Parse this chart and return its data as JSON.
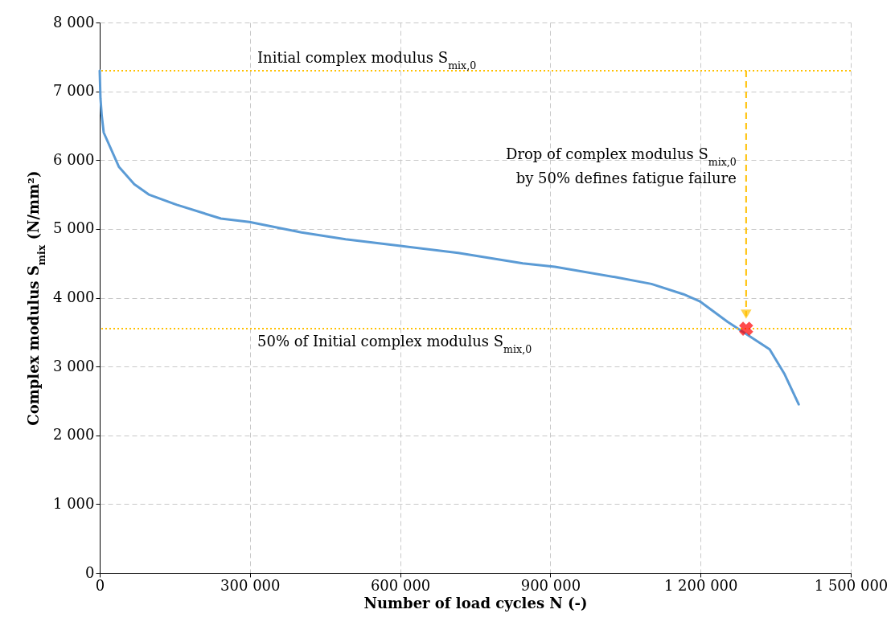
{
  "chart_data": {
    "type": "line",
    "xlabel": "Number of load cycles N (-)",
    "ylabel": "Complex modulus S$_{mix}$  (N/mm²)",
    "xlim": [
      0,
      1500000
    ],
    "xticks": [
      0,
      {
        "value": 300000,
        "label": "300 000"
      },
      {
        "value": 600000,
        "label": "600 000"
      },
      {
        "value": 900000,
        "label": "900 000"
      },
      {
        "value": 1200000,
        "label": "1 200 000"
      },
      {
        "value": 1500000,
        "label": "1 500 000"
      }
    ],
    "ylim": [
      0,
      8000
    ],
    "yticks": [
      0,
      {
        "value": 1000,
        "label": "1 000"
      },
      {
        "value": 2000,
        "label": "2 000"
      },
      {
        "value": 3000,
        "label": "3 000"
      },
      {
        "value": 4000,
        "label": "4 000"
      },
      {
        "value": 5000,
        "label": "5 000"
      },
      {
        "value": 6000,
        "label": "6 000"
      },
      {
        "value": 7000,
        "label": "7 000"
      },
      {
        "value": 8000,
        "label": "8 000"
      }
    ],
    "series": [
      {
        "color": "#5b9bd5",
        "x": [
          0,
          1500,
          4000,
          8000,
          38500,
          69000,
          98000,
          154000,
          242000,
          299000,
          403000,
          491000,
          604000,
          716000,
          845000,
          909000,
          1029000,
          1102000,
          1166000,
          1198000,
          1254000,
          1338000,
          1367000,
          1396000
        ],
        "values": [
          7300,
          6900,
          6650,
          6400,
          5900,
          5650,
          5500,
          5350,
          5150,
          5100,
          4950,
          4850,
          4750,
          4650,
          4500,
          4450,
          4300,
          4200,
          4050,
          3950,
          3650,
          3250,
          2900,
          2450
        ]
      },
      {
        "type": "scatter",
        "color": "#ff0000",
        "marker": "cross",
        "x": [
          1291000
        ],
        "values": [
          3550
        ]
      }
    ],
    "ref_lines": [
      {
        "axis": "y",
        "value": 7300,
        "label": "Initial complex modulus S$_{mix,0}$",
        "color": "#ffc000",
        "line_style": "dotted"
      },
      {
        "axis": "y",
        "value": 3550,
        "label": "50% of Initial complex modulus S$_{mix,0}$",
        "color": "#ffc000",
        "line_style": "dotted"
      }
    ],
    "annotations": [
      "Drop of complex modulus S$_{mix,0}$ by 50% defines fatigue failure"
    ],
    "grid": true,
    "marker": "none",
    "line_style": "solid"
  }
}
